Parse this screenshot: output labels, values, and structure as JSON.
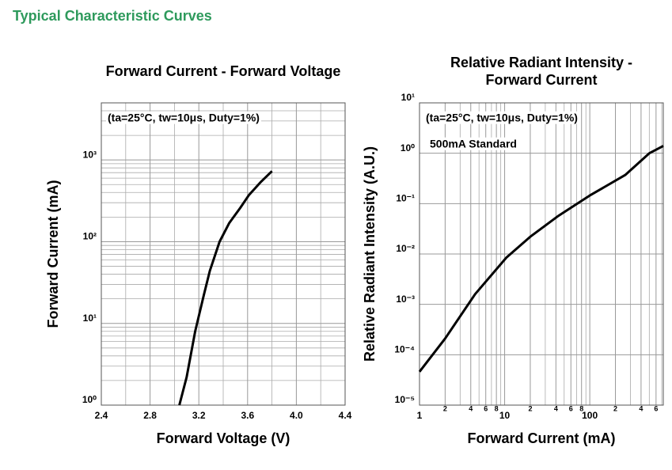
{
  "header": {
    "title": "Typical Characteristic Curves"
  },
  "chart_data": [
    {
      "type": "line",
      "title": [
        "Forward Current - Forward Voltage"
      ],
      "x_label": "Forward Voltage (V)",
      "y_label": "Forward Current (mA)",
      "annotations": [
        "(ta=25°C, tw=10μs, Duty=1%)"
      ],
      "xscale": "linear",
      "yscale": "log",
      "xlim": [
        2.4,
        4.4
      ],
      "xticks": [
        2.4,
        2.8,
        3.2,
        3.6,
        {
          "value": 4,
          "label": "4.0"
        },
        4.4
      ],
      "xminor": [
        2.6,
        3.0,
        3.4,
        3.8,
        4.2
      ],
      "ylim": [
        1,
        5000
      ],
      "yticks": [
        {
          "value": 1,
          "label": "10⁰"
        },
        {
          "value": 10,
          "label": "10¹"
        },
        {
          "value": 100,
          "label": "10²"
        },
        {
          "value": 1000,
          "label": "10³"
        }
      ],
      "yminor": [
        2,
        3,
        4,
        5,
        6,
        7,
        8,
        9,
        20,
        30,
        40,
        50,
        60,
        70,
        80,
        90,
        200,
        300,
        400,
        500,
        600,
        700,
        800,
        900,
        2000,
        3000,
        4000,
        5000
      ],
      "grid": true,
      "series": [
        {
          "color": "#000000",
          "x": [
            3.04,
            3.1,
            3.17,
            3.24,
            3.29,
            3.37,
            3.45,
            3.54,
            3.61,
            3.71,
            3.8
          ],
          "values": [
            1,
            2.2,
            8,
            22,
            44,
            100,
            170,
            260,
            370,
            540,
            730
          ]
        }
      ]
    },
    {
      "type": "line",
      "title": [
        "Relative Radiant Intensity -",
        "Forward Current"
      ],
      "x_label": "Forward Current (mA)",
      "y_label": "Relative Radiant Intensity (A.U.)",
      "annotations": [
        "(ta=25°C, tw=10μs, Duty=1%)",
        "500mA Standard"
      ],
      "xscale": "log",
      "yscale": "log",
      "xlim": [
        1,
        730
      ],
      "xticks": [
        1,
        2,
        4,
        6,
        8,
        10,
        {
          "value": 20,
          "label": "2"
        },
        {
          "value": 40,
          "label": "4"
        },
        {
          "value": 60,
          "label": "6"
        },
        {
          "value": 80,
          "label": "8"
        },
        100,
        {
          "value": 200,
          "label": "2"
        },
        {
          "value": 400,
          "label": "4"
        },
        {
          "value": 600,
          "label": "6"
        }
      ],
      "xminor": [
        3,
        5,
        7,
        9,
        30,
        50,
        70,
        90,
        300,
        500,
        700
      ],
      "ylim": [
        1e-05,
        10
      ],
      "yticks": [
        {
          "value": 1e-05,
          "label": "10⁻⁵"
        },
        {
          "value": 0.0001,
          "label": "10⁻⁴"
        },
        {
          "value": 0.001,
          "label": "10⁻³"
        },
        {
          "value": 0.01,
          "label": "10⁻²"
        },
        {
          "value": 0.1,
          "label": "10⁻¹"
        },
        {
          "value": 1,
          "label": "10⁰"
        },
        {
          "value": 10,
          "label": "10¹"
        }
      ],
      "yminor": [],
      "grid": true,
      "series": [
        {
          "color": "#000000",
          "x": [
            1,
            2,
            4.5,
            10.5,
            20,
            42,
            100,
            260,
            500,
            730
          ],
          "values": [
            4.6e-05,
            0.00021,
            0.0016,
            0.0085,
            0.022,
            0.056,
            0.145,
            0.37,
            1.0,
            1.4
          ]
        }
      ]
    }
  ]
}
